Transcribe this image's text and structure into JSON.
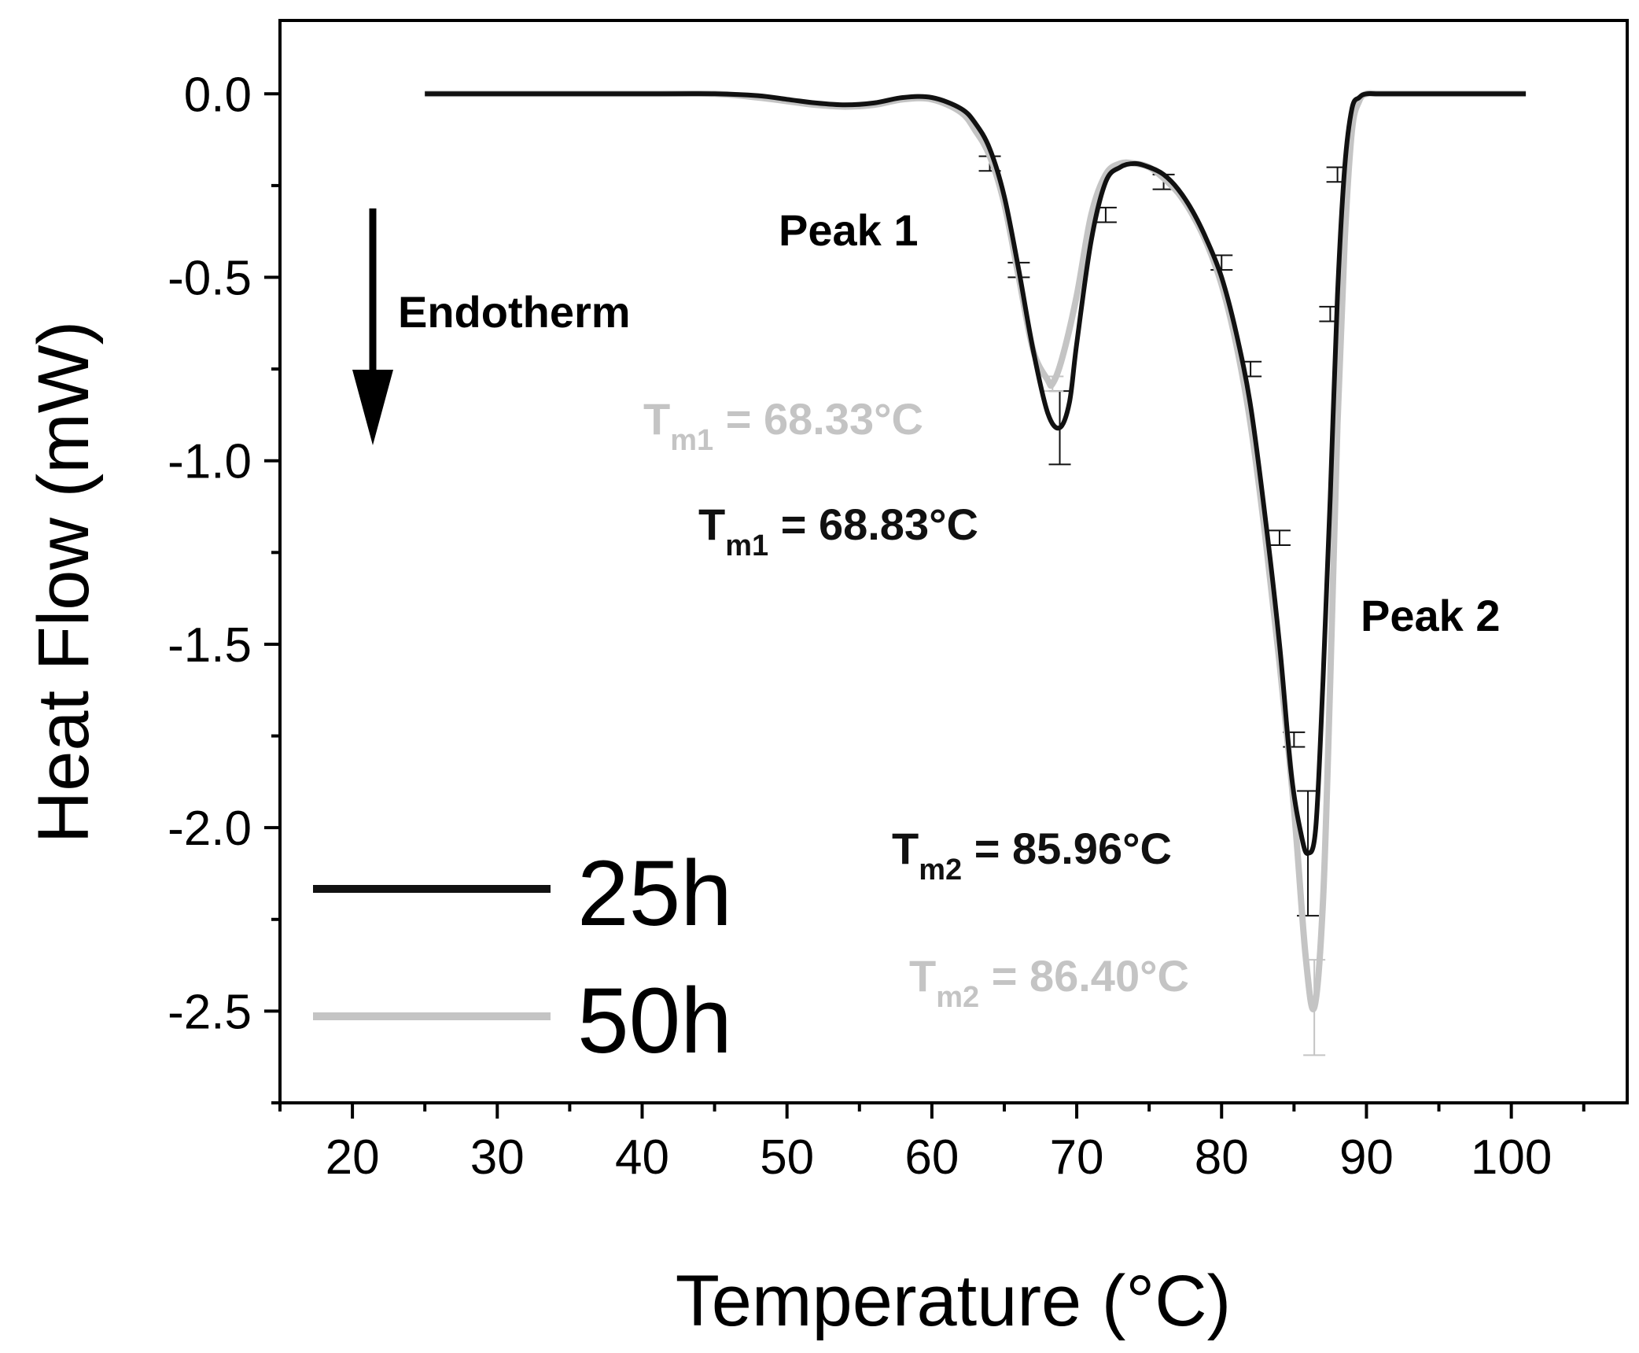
{
  "chart_data": {
    "type": "line",
    "xlabel": "Temperature (°C)",
    "ylabel": "Heat Flow (mW)",
    "xlim": [
      15,
      108
    ],
    "ylim": [
      -2.75,
      0.2
    ],
    "x_ticks": [
      20,
      30,
      40,
      50,
      60,
      70,
      80,
      90,
      100
    ],
    "x_tick_labels": [
      "20",
      "30",
      "40",
      "50",
      "60",
      "70",
      "80",
      "90",
      "100"
    ],
    "y_ticks": [
      0.0,
      -0.5,
      -1.0,
      -1.5,
      -2.0,
      -2.5
    ],
    "y_tick_labels": [
      "0.0",
      "-0.5",
      "-1.0",
      "-1.5",
      "-2.0",
      "-2.5"
    ],
    "legend_position": "bottom-left",
    "series": [
      {
        "name": "25h",
        "color": "#111111",
        "x": [
          25,
          30,
          35,
          40,
          45,
          48,
          50,
          52,
          54,
          56,
          58,
          60,
          62,
          63,
          64,
          65,
          66,
          67,
          68,
          68.83,
          69.5,
          70,
          71,
          72,
          73,
          74,
          75,
          76,
          77,
          78,
          79,
          80,
          81,
          82,
          83,
          84,
          84.8,
          85.5,
          85.96,
          86.5,
          87,
          87.5,
          88,
          88.5,
          89,
          89.5,
          90,
          91,
          95,
          101
        ],
        "y": [
          0,
          0,
          0,
          0,
          0,
          -0.005,
          -0.015,
          -0.025,
          -0.03,
          -0.025,
          -0.01,
          -0.01,
          -0.04,
          -0.08,
          -0.15,
          -0.28,
          -0.48,
          -0.7,
          -0.87,
          -0.91,
          -0.84,
          -0.68,
          -0.4,
          -0.24,
          -0.2,
          -0.19,
          -0.2,
          -0.22,
          -0.26,
          -0.32,
          -0.4,
          -0.5,
          -0.65,
          -0.85,
          -1.15,
          -1.5,
          -1.85,
          -2.02,
          -2.07,
          -2.0,
          -1.6,
          -1.1,
          -0.55,
          -0.2,
          -0.04,
          -0.01,
          0,
          0,
          0,
          0
        ],
        "error_bars": [
          {
            "x": 64,
            "y": -0.19,
            "err": 0.02
          },
          {
            "x": 66,
            "y": -0.48,
            "err": 0.02
          },
          {
            "x": 68.83,
            "y": -0.91,
            "err": 0.1
          },
          {
            "x": 72,
            "y": -0.33,
            "err": 0.02
          },
          {
            "x": 76,
            "y": -0.24,
            "err": 0.02
          },
          {
            "x": 80,
            "y": -0.46,
            "err": 0.02
          },
          {
            "x": 82,
            "y": -0.75,
            "err": 0.02
          },
          {
            "x": 84,
            "y": -1.21,
            "err": 0.02
          },
          {
            "x": 85,
            "y": -1.76,
            "err": 0.02
          },
          {
            "x": 85.96,
            "y": -2.07,
            "err": 0.17
          },
          {
            "x": 87.5,
            "y": -0.6,
            "err": 0.02
          },
          {
            "x": 88,
            "y": -0.22,
            "err": 0.02
          }
        ]
      },
      {
        "name": "50h",
        "color": "#c4c4c4",
        "x": [
          25,
          30,
          35,
          40,
          45,
          48,
          50,
          52,
          54,
          56,
          58,
          60,
          62,
          63,
          64,
          65,
          66,
          67,
          68,
          68.33,
          69,
          70,
          71,
          72,
          73,
          74,
          75,
          76,
          77,
          78,
          79,
          80,
          81,
          82,
          83,
          84,
          85,
          85.8,
          86.4,
          87,
          87.5,
          88,
          88.5,
          89,
          89.5,
          90,
          91,
          95,
          101
        ],
        "y": [
          0,
          0,
          0,
          0,
          0,
          -0.01,
          -0.02,
          -0.03,
          -0.035,
          -0.03,
          -0.015,
          -0.015,
          -0.05,
          -0.1,
          -0.17,
          -0.3,
          -0.5,
          -0.7,
          -0.78,
          -0.79,
          -0.72,
          -0.55,
          -0.33,
          -0.22,
          -0.19,
          -0.19,
          -0.2,
          -0.23,
          -0.27,
          -0.33,
          -0.41,
          -0.52,
          -0.68,
          -0.9,
          -1.2,
          -1.55,
          -1.95,
          -2.35,
          -2.49,
          -2.2,
          -1.6,
          -0.9,
          -0.4,
          -0.1,
          -0.02,
          0,
          0,
          0,
          0
        ],
        "error_bars": [
          {
            "x": 68.33,
            "y": -0.79,
            "err": 0.02
          },
          {
            "x": 86.4,
            "y": -2.49,
            "err": 0.13
          }
        ]
      }
    ],
    "annotations": {
      "peak1": "Peak 1",
      "peak2": "Peak 2",
      "endotherm": "Endotherm",
      "tm1_50h": {
        "main": "T",
        "sub": "m1",
        "rest": " = 68.33°C",
        "color": "#c4c4c4"
      },
      "tm1_25h": {
        "main": "T",
        "sub": "m1",
        "rest": " = 68.83°C",
        "color": "#111111"
      },
      "tm2_25h": {
        "main": "T",
        "sub": "m2",
        "rest": " = 85.96°C",
        "color": "#111111"
      },
      "tm2_50h": {
        "main": "T",
        "sub": "m2",
        "rest": " = 86.40°C",
        "color": "#c4c4c4"
      }
    }
  }
}
